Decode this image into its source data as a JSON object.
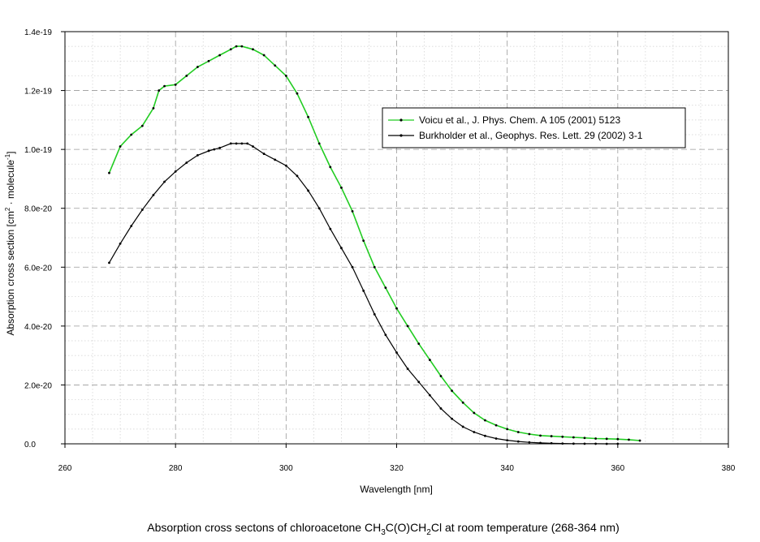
{
  "chart_data": {
    "type": "line",
    "xlabel": "Wavelength [nm]",
    "ylabel": {
      "pre": "Absorption cross section [cm",
      "sup1": "2",
      "mid": " · molecule",
      "sup2": "-1",
      "post": "]"
    },
    "caption": {
      "p1": "Absorption cross sectons of chloroacetone CH",
      "s1": "3",
      "p2": "C(O)CH",
      "s2": "2",
      "p3": "Cl at room temperature (268-364 nm)"
    },
    "xlim": [
      260,
      380
    ],
    "ylim": [
      0,
      1.4e-19
    ],
    "x_ticks": [
      260,
      280,
      300,
      320,
      340,
      360,
      380
    ],
    "y_ticks": [
      0,
      2e-20,
      4e-20,
      6e-20,
      8e-20,
      1e-19,
      1.2e-19,
      1.4e-19
    ],
    "x_tick_labels": [
      "260",
      "280",
      "300",
      "320",
      "340",
      "360",
      "380"
    ],
    "y_tick_labels": [
      "0.0",
      "2.0e-20",
      "4.0e-20",
      "6.0e-20",
      "8.0e-20",
      "1.0e-19",
      "1.2e-19",
      "1.4e-19"
    ],
    "grid": true,
    "legend_position": "top-right",
    "series": [
      {
        "name": "Voicu et al., J. Phys. Chem. A 105 (2001) 5123",
        "color": "#22cc22",
        "marker_color": "#000000",
        "x": [
          268,
          270,
          272,
          274,
          276,
          277,
          278,
          280,
          282,
          284,
          286,
          288,
          290,
          291,
          292,
          294,
          296,
          298,
          300,
          302,
          304,
          306,
          308,
          310,
          312,
          314,
          316,
          318,
          320,
          322,
          324,
          326,
          328,
          330,
          332,
          334,
          336,
          338,
          340,
          342,
          344,
          346,
          348,
          350,
          352,
          354,
          356,
          358,
          360,
          362,
          364
        ],
        "y": [
          9.2e-20,
          1.01e-19,
          1.05e-19,
          1.08e-19,
          1.14e-19,
          1.2e-19,
          1.215e-19,
          1.22e-19,
          1.25e-19,
          1.28e-19,
          1.3e-19,
          1.32e-19,
          1.34e-19,
          1.35e-19,
          1.35e-19,
          1.34e-19,
          1.32e-19,
          1.285e-19,
          1.25e-19,
          1.19e-19,
          1.11e-19,
          1.02e-19,
          9.4e-20,
          8.7e-20,
          7.9e-20,
          6.9e-20,
          6e-20,
          5.3e-20,
          4.6e-20,
          4e-20,
          3.4e-20,
          2.85e-20,
          2.3e-20,
          1.8e-20,
          1.4e-20,
          1.05e-20,
          8e-21,
          6.3e-21,
          5e-21,
          4e-21,
          3.3e-21,
          2.8e-21,
          2.6e-21,
          2.4e-21,
          2.2e-21,
          2e-21,
          1.8e-21,
          1.7e-21,
          1.6e-21,
          1.4e-21,
          1.1e-21
        ]
      },
      {
        "name": "Burkholder et al., Geophys. Res. Lett. 29 (2002) 3-1",
        "color": "#000000",
        "marker_color": "#000000",
        "x": [
          268,
          270,
          272,
          274,
          276,
          278,
          280,
          282,
          284,
          286,
          287,
          288,
          290,
          291,
          292,
          293,
          294,
          296,
          298,
          300,
          302,
          304,
          306,
          308,
          310,
          312,
          314,
          316,
          318,
          320,
          322,
          324,
          326,
          328,
          330,
          332,
          334,
          336,
          338,
          340,
          342,
          344,
          346,
          348,
          350,
          352,
          354,
          356,
          358,
          360
        ],
        "y": [
          6.15e-20,
          6.8e-20,
          7.4e-20,
          7.95e-20,
          8.45e-20,
          8.9e-20,
          9.25e-20,
          9.55e-20,
          9.8e-20,
          9.95e-20,
          1e-19,
          1.005e-19,
          1.02e-19,
          1.02e-19,
          1.02e-19,
          1.02e-19,
          1.01e-19,
          9.85e-20,
          9.65e-20,
          9.45e-20,
          9.1e-20,
          8.6e-20,
          8e-20,
          7.3e-20,
          6.65e-20,
          6e-20,
          5.2e-20,
          4.4e-20,
          3.7e-20,
          3.1e-20,
          2.55e-20,
          2.1e-20,
          1.65e-20,
          1.2e-20,
          8.5e-21,
          5.8e-21,
          4e-21,
          2.7e-21,
          1.8e-21,
          1.2e-21,
          8e-22,
          5e-22,
          3e-22,
          2e-22,
          1e-22,
          5e-23,
          3e-23,
          2e-23,
          1e-23,
          0
        ]
      }
    ]
  }
}
